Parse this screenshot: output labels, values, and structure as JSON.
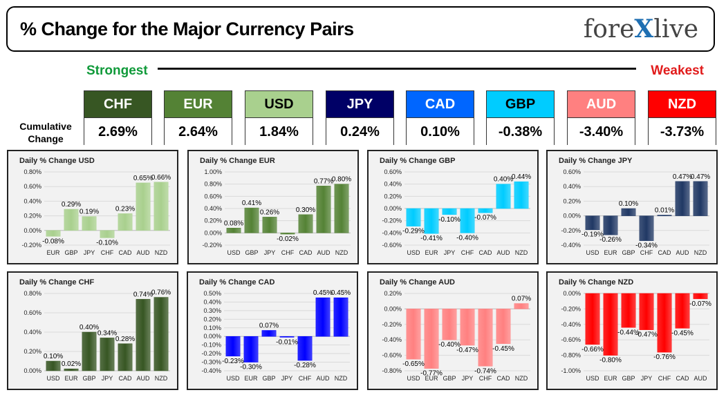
{
  "header": {
    "title": "% Change for the Major Currency Pairs",
    "logo_left": "fore",
    "logo_x": "X",
    "logo_right": "live"
  },
  "scale": {
    "strongest": "Strongest",
    "weakest": "Weakest"
  },
  "cumulative": {
    "label_line1": "Cumulative",
    "label_line2": "Change",
    "items": [
      {
        "code": "CHF",
        "value": "2.69%",
        "bg": "#375623",
        "fg": "#ffffff"
      },
      {
        "code": "EUR",
        "value": "2.64%",
        "bg": "#548235",
        "fg": "#ffffff"
      },
      {
        "code": "USD",
        "value": "1.84%",
        "bg": "#a9d08e",
        "fg": "#000000"
      },
      {
        "code": "JPY",
        "value": "0.24%",
        "bg": "#000066",
        "fg": "#ffffff"
      },
      {
        "code": "CAD",
        "value": "0.10%",
        "bg": "#0066ff",
        "fg": "#ffffff"
      },
      {
        "code": "GBP",
        "value": "-0.38%",
        "bg": "#00ccff",
        "fg": "#000000"
      },
      {
        "code": "AUD",
        "value": "-3.40%",
        "bg": "#ff8080",
        "fg": "#ffffff"
      },
      {
        "code": "NZD",
        "value": "-3.73%",
        "bg": "#ff0000",
        "fg": "#ffffff"
      }
    ]
  },
  "chart_data": [
    {
      "type": "bar",
      "title": "Daily % Change USD",
      "categories": [
        "EUR",
        "GBP",
        "JPY",
        "CHF",
        "CAD",
        "AUD",
        "NZD"
      ],
      "values": [
        -0.08,
        0.29,
        0.19,
        -0.1,
        0.23,
        0.65,
        0.66
      ],
      "labels": [
        "-0.08%",
        "0.29%",
        "0.19%",
        "-0.10%",
        "0.23%",
        "0.65%",
        "0.66%"
      ],
      "ylim": [
        -0.2,
        0.8
      ],
      "yticks": [
        -0.2,
        0,
        0.2,
        0.4,
        0.6,
        0.8
      ],
      "ytick_labels": [
        "-0.20%",
        "0.00%",
        "0.20%",
        "0.40%",
        "0.60%",
        "0.80%"
      ],
      "color": "#a9d08e"
    },
    {
      "type": "bar",
      "title": "Daily % Change EUR",
      "categories": [
        "USD",
        "GBP",
        "JPY",
        "CHF",
        "CAD",
        "AUD",
        "NZD"
      ],
      "values": [
        0.08,
        0.41,
        0.26,
        -0.02,
        0.3,
        0.77,
        0.8
      ],
      "labels": [
        "0.08%",
        "0.41%",
        "0.26%",
        "-0.02%",
        "0.30%",
        "0.77%",
        "0.80%"
      ],
      "ylim": [
        -0.2,
        1.0
      ],
      "yticks": [
        -0.2,
        0,
        0.2,
        0.4,
        0.6,
        0.8,
        1.0
      ],
      "ytick_labels": [
        "-0.20%",
        "0.00%",
        "0.20%",
        "0.40%",
        "0.60%",
        "0.80%",
        "1.00%"
      ],
      "color": "#548235"
    },
    {
      "type": "bar",
      "title": "Daily % Change GBP",
      "categories": [
        "USD",
        "EUR",
        "JPY",
        "CHF",
        "CAD",
        "AUD",
        "NZD"
      ],
      "values": [
        -0.29,
        -0.41,
        -0.1,
        -0.4,
        -0.07,
        0.4,
        0.44
      ],
      "labels": [
        "-0.29%",
        "-0.41%",
        "-0.10%",
        "-0.40%",
        "-0.07%",
        "0.40%",
        "0.44%"
      ],
      "ylim": [
        -0.6,
        0.6
      ],
      "yticks": [
        -0.6,
        -0.4,
        -0.2,
        0,
        0.2,
        0.4,
        0.6
      ],
      "ytick_labels": [
        "-0.60%",
        "-0.40%",
        "-0.20%",
        "0.00%",
        "0.20%",
        "0.40%",
        "0.60%"
      ],
      "color": "#00ccff"
    },
    {
      "type": "bar",
      "title": "Daily % Change JPY",
      "categories": [
        "USD",
        "EUR",
        "GBP",
        "CHF",
        "CAD",
        "AUD",
        "NZD"
      ],
      "values": [
        -0.19,
        -0.26,
        0.1,
        -0.34,
        0.01,
        0.47,
        0.47
      ],
      "labels": [
        "-0.19%",
        "-0.26%",
        "0.10%",
        "-0.34%",
        "0.01%",
        "0.47%",
        "0.47%"
      ],
      "ylim": [
        -0.4,
        0.6
      ],
      "yticks": [
        -0.4,
        -0.2,
        0,
        0.2,
        0.4,
        0.6
      ],
      "ytick_labels": [
        "-0.40%",
        "-0.20%",
        "0.00%",
        "0.20%",
        "0.40%",
        "0.60%"
      ],
      "color": "#203864"
    },
    {
      "type": "bar",
      "title": "Daily % Change CHF",
      "categories": [
        "USD",
        "EUR",
        "GBP",
        "JPY",
        "CAD",
        "AUD",
        "NZD"
      ],
      "values": [
        0.1,
        0.02,
        0.4,
        0.34,
        0.28,
        0.74,
        0.76
      ],
      "labels": [
        "0.10%",
        "0.02%",
        "0.40%",
        "0.34%",
        "0.28%",
        "0.74%",
        "0.76%"
      ],
      "ylim": [
        0,
        0.8
      ],
      "yticks": [
        0,
        0.2,
        0.4,
        0.6,
        0.8
      ],
      "ytick_labels": [
        "0.00%",
        "0.20%",
        "0.40%",
        "0.60%",
        "0.80%"
      ],
      "color": "#375623"
    },
    {
      "type": "bar",
      "title": "Daily % Change CAD",
      "categories": [
        "USD",
        "EUR",
        "GBP",
        "JPY",
        "CHF",
        "AUD",
        "NZD"
      ],
      "values": [
        -0.23,
        -0.3,
        0.07,
        -0.01,
        -0.28,
        0.45,
        0.45
      ],
      "labels": [
        "-0.23%",
        "-0.30%",
        "0.07%",
        "-0.01%",
        "-0.28%",
        "0.45%",
        "0.45%"
      ],
      "ylim": [
        -0.4,
        0.5
      ],
      "yticks": [
        -0.4,
        -0.3,
        -0.2,
        -0.1,
        0,
        0.1,
        0.2,
        0.3,
        0.4,
        0.5
      ],
      "ytick_labels": [
        "-0.40%",
        "-0.30%",
        "-0.20%",
        "-0.10%",
        "0.00%",
        "0.10%",
        "0.20%",
        "0.30%",
        "0.40%",
        "0.50%"
      ],
      "color": "#0000ff"
    },
    {
      "type": "bar",
      "title": "Daily % Change AUD",
      "categories": [
        "USD",
        "EUR",
        "GBP",
        "JPY",
        "CHF",
        "CAD",
        "NZD"
      ],
      "values": [
        -0.65,
        -0.77,
        -0.4,
        -0.47,
        -0.74,
        -0.45,
        0.07
      ],
      "labels": [
        "-0.65%",
        "-0.77%",
        "-0.40%",
        "-0.47%",
        "-0.74%",
        "-0.45%",
        "0.07%"
      ],
      "ylim": [
        -0.8,
        0.2
      ],
      "yticks": [
        -0.8,
        -0.6,
        -0.4,
        -0.2,
        0,
        0.2
      ],
      "ytick_labels": [
        "-0.80%",
        "-0.60%",
        "-0.40%",
        "-0.20%",
        "0.00%",
        "0.20%"
      ],
      "color": "#ff8080"
    },
    {
      "type": "bar",
      "title": "Daily % Change NZD",
      "categories": [
        "USD",
        "EUR",
        "GBP",
        "JPY",
        "CHF",
        "CAD",
        "AUD"
      ],
      "values": [
        -0.66,
        -0.8,
        -0.44,
        -0.47,
        -0.76,
        -0.45,
        -0.07
      ],
      "labels": [
        "-0.66%",
        "-0.80%",
        "-0.44%",
        "-0.47%",
        "-0.76%",
        "-0.45%",
        "-0.07%"
      ],
      "ylim": [
        -1.0,
        0
      ],
      "yticks": [
        -1.0,
        -0.8,
        -0.6,
        -0.4,
        -0.2,
        0
      ],
      "ytick_labels": [
        "-1.00%",
        "-0.80%",
        "-0.60%",
        "-0.40%",
        "-0.20%",
        "0.00%"
      ],
      "color": "#ff0000"
    }
  ]
}
